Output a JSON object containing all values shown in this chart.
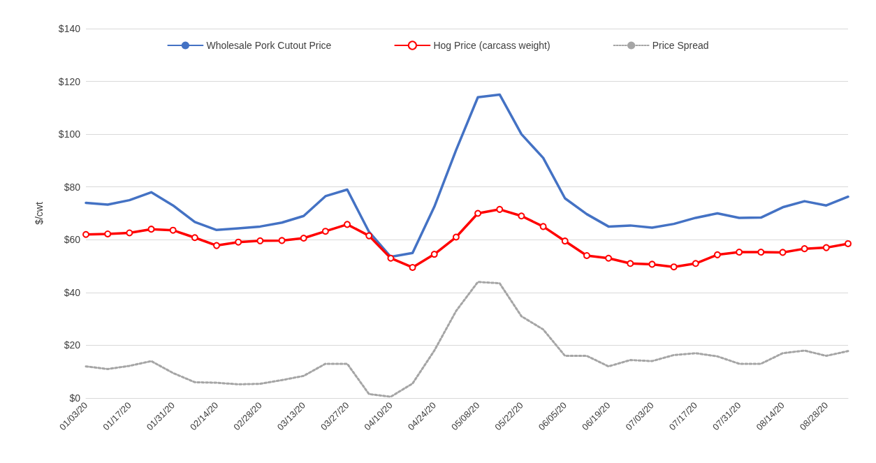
{
  "chart_data": {
    "type": "line",
    "ylabel": "$/cwt",
    "categories": [
      "01/03/20",
      null,
      "01/17/20",
      null,
      "01/31/20",
      null,
      "02/14/20",
      null,
      "02/28/20",
      null,
      "03/13/20",
      null,
      "03/27/20",
      null,
      "04/10/20",
      null,
      "04/24/20",
      null,
      "05/08/20",
      null,
      "05/22/20",
      null,
      "06/05/20",
      null,
      "06/19/20",
      null,
      "07/03/20",
      null,
      "07/17/20",
      null,
      "07/31/20",
      null,
      "08/14/20",
      null,
      "08/28/20",
      null
    ],
    "series": [
      {
        "name": "Wholesale Pork Cutout Price",
        "color": "#4472c4",
        "marker": "none",
        "line_style": "solid",
        "values": [
          74,
          73.3,
          75,
          78,
          73,
          66.7,
          63.7,
          64.3,
          65,
          66.5,
          69,
          76.5,
          79,
          63,
          53.5,
          55,
          72.5,
          94,
          114,
          115,
          100,
          91,
          75.7,
          69.7,
          65,
          65.4,
          64.6,
          66,
          68.3,
          70,
          68.3,
          68.4,
          72.3,
          74.6,
          73,
          76.3
        ]
      },
      {
        "name": "Hog Price (carcass weight)",
        "color": "#ff0000",
        "marker": "circle",
        "line_style": "solid",
        "values": [
          62,
          62.2,
          62.6,
          64,
          63.6,
          60.8,
          57.8,
          59.1,
          59.6,
          59.7,
          60.6,
          63.2,
          65.8,
          61.5,
          53,
          49.5,
          54.5,
          61,
          70,
          71.5,
          69,
          65,
          59.5,
          54,
          53,
          51,
          50.7,
          49.7,
          51,
          54.3,
          55.3,
          55.3,
          55.2,
          56.6,
          57,
          58.5
        ]
      },
      {
        "name": "Price Spread",
        "color": "#a5a5a5",
        "marker": "none",
        "line_style": "dotted",
        "values": [
          12,
          11,
          12.2,
          14,
          9.5,
          6,
          5.8,
          5.2,
          5.4,
          6.8,
          8.4,
          13,
          13,
          1.5,
          0.5,
          5.5,
          18,
          33,
          44,
          43.5,
          31,
          26,
          16,
          16,
          12,
          14.4,
          14,
          16.3,
          17,
          15.8,
          13,
          13,
          17,
          18,
          16,
          17.8
        ]
      }
    ],
    "ylim": [
      0,
      140
    ],
    "yticks": [
      {
        "value": 0,
        "label": "$0"
      },
      {
        "value": 20,
        "label": "$20"
      },
      {
        "value": 40,
        "label": "$40"
      },
      {
        "value": 60,
        "label": "$60"
      },
      {
        "value": 80,
        "label": "$80"
      },
      {
        "value": 100,
        "label": "$100"
      },
      {
        "value": 120,
        "label": "$120"
      },
      {
        "value": 140,
        "label": "$140"
      }
    ],
    "grid": "y",
    "legend": "top"
  }
}
